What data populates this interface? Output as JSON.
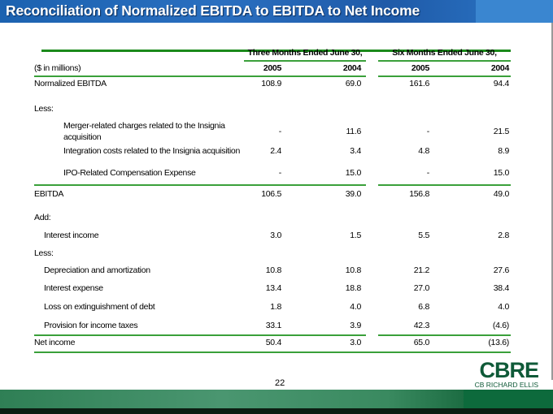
{
  "title": "Reconciliation of Normalized EBITDA to EBITDA to Net Income",
  "table": {
    "group_headers": [
      "Three Months Ended June 30,",
      "Six Months Ended June 30,"
    ],
    "units_label": "($ in millions)",
    "years": [
      "2005",
      "2004",
      "2005",
      "2004"
    ],
    "rows": [
      {
        "label": "Normalized EBITDA",
        "values": [
          "108.9",
          "69.0",
          "161.6",
          "94.4"
        ]
      },
      {
        "label": "Less:"
      },
      {
        "label": "Merger-related charges related to the Insignia",
        "label2": "acquisition",
        "values": [
          "-",
          "11.6",
          "-",
          "21.5"
        ]
      },
      {
        "label": "Integration costs related to the Insignia acquisition",
        "values": [
          "2.4",
          "3.4",
          "4.8",
          "8.9"
        ]
      },
      {
        "label": "IPO-Related Compensation Expense",
        "values": [
          "-",
          "15.0",
          "-",
          "15.0"
        ]
      },
      {
        "label": "EBITDA",
        "values": [
          "106.5",
          "39.0",
          "156.8",
          "49.0"
        ]
      },
      {
        "label": "Add:"
      },
      {
        "label": "Interest income",
        "values": [
          "3.0",
          "1.5",
          "5.5",
          "2.8"
        ]
      },
      {
        "label": "Less:"
      },
      {
        "label": "Depreciation and amortization",
        "values": [
          "10.8",
          "10.8",
          "21.2",
          "27.6"
        ]
      },
      {
        "label": "Interest expense",
        "values": [
          "13.4",
          "18.8",
          "27.0",
          "38.4"
        ]
      },
      {
        "label": "Loss on extinguishment of debt",
        "values": [
          "1.8",
          "4.0",
          "6.8",
          "4.0"
        ]
      },
      {
        "label": "Provision for income taxes",
        "values": [
          "33.1",
          "3.9",
          "42.3",
          "(4.6)"
        ]
      },
      {
        "label": "Net income",
        "values": [
          "50.4",
          "3.0",
          "65.0",
          "(13.6)"
        ]
      }
    ]
  },
  "footer": {
    "page_number": "22",
    "logo_text": "CBRE",
    "logo_subtext": "CB RICHARD ELLIS"
  },
  "colors": {
    "title_bar": "#1c62b0",
    "rule_green": "#3aa03a",
    "brand_green": "#0f5a38"
  }
}
